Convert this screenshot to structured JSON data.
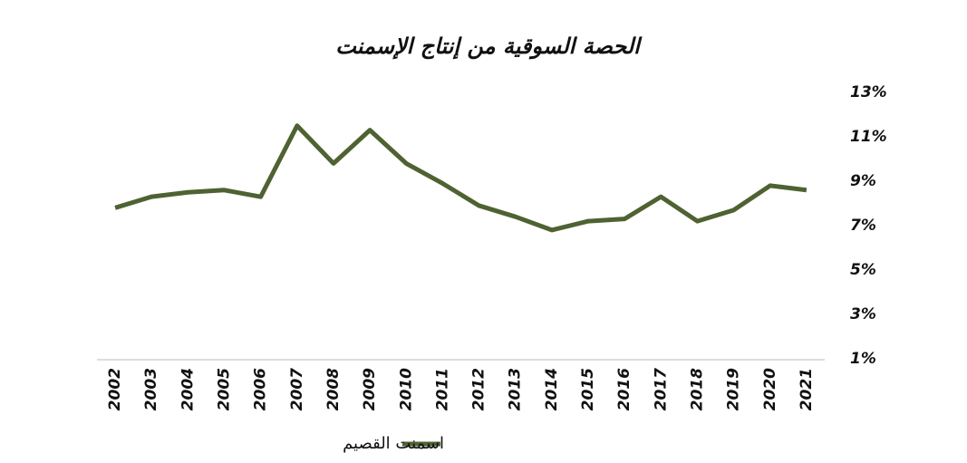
{
  "chart_data": {
    "type": "line",
    "title": "الحصة السوقية من إنتاج الإسمنت",
    "categories": [
      "2002",
      "2003",
      "2004",
      "2005",
      "2006",
      "2007",
      "2008",
      "2009",
      "2010",
      "2011",
      "2012",
      "2013",
      "2014",
      "2015",
      "2016",
      "2017",
      "2018",
      "2019",
      "2020",
      "2021"
    ],
    "series": [
      {
        "name": "اسمنت القصيم",
        "color": "#4e6232",
        "values": [
          7.8,
          8.3,
          8.5,
          8.6,
          8.3,
          11.5,
          9.8,
          11.3,
          9.8,
          8.9,
          7.9,
          7.4,
          6.8,
          7.2,
          7.3,
          8.3,
          7.2,
          7.7,
          8.8,
          8.6
        ]
      }
    ],
    "ylim": [
      1,
      13
    ],
    "yticks": [
      {
        "value": 1,
        "label": "1%"
      },
      {
        "value": 3,
        "label": "3%"
      },
      {
        "value": 5,
        "label": "5%"
      },
      {
        "value": 7,
        "label": "7%"
      },
      {
        "value": 9,
        "label": "9%"
      },
      {
        "value": 11,
        "label": "11%"
      },
      {
        "value": 13,
        "label": "13%"
      }
    ]
  }
}
